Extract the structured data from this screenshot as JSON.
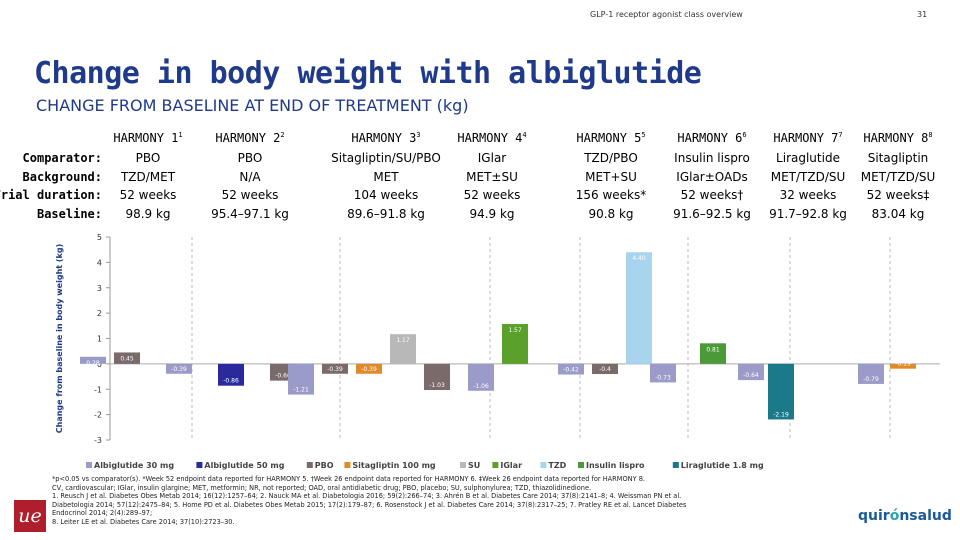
{
  "header": {
    "note": "GLP-1 receptor agonist class overview",
    "page": "31"
  },
  "title": "Change in body weight with albiglutide",
  "subtitle": "CHANGE FROM BASELINE AT END OF TREATMENT (kg)",
  "row_labels": {
    "comparator": "Comparator:",
    "background": "Background:",
    "duration": "Trial duration:",
    "baseline": "Baseline:"
  },
  "trials": [
    {
      "name": "HARMONY 1",
      "sup": "1",
      "comparator": "PBO",
      "background": "TZD/MET",
      "duration": "52 weeks",
      "baseline": "98.9 kg"
    },
    {
      "name": "HARMONY 2",
      "sup": "2",
      "comparator": "PBO",
      "background": "N/A",
      "duration": "52 weeks",
      "baseline": "95.4–97.1 kg"
    },
    {
      "name": "HARMONY 3",
      "sup": "3",
      "comparator": "Sitagliptin/SU/PBO",
      "background": "MET",
      "duration": "104 weeks",
      "baseline": "89.6–91.8 kg"
    },
    {
      "name": "HARMONY 4",
      "sup": "4",
      "comparator": "IGlar",
      "background": "MET±SU",
      "duration": "52 weeks",
      "baseline": "94.9 kg"
    },
    {
      "name": "HARMONY 5",
      "sup": "5",
      "comparator": "TZD/PBO",
      "background": "MET+SU",
      "duration": "156 weeks*",
      "baseline": "90.8 kg"
    },
    {
      "name": "HARMONY 6",
      "sup": "6",
      "comparator": "Insulin lispro",
      "background": "IGlar±OADs",
      "duration": "52 weeks†",
      "baseline": "91.6–92.5 kg"
    },
    {
      "name": "HARMONY 7",
      "sup": "7",
      "comparator": "Liraglutide",
      "background": "MET/TZD/SU",
      "duration": "32 weeks",
      "baseline": "91.7–92.8 kg"
    },
    {
      "name": "HARMONY 8",
      "sup": "8",
      "comparator": "Sitagliptin",
      "background": "MET/TZD/SU",
      "duration": "52 weeks‡",
      "baseline": "83.04 kg"
    }
  ],
  "chart_data": {
    "type": "bar",
    "ylabel": "Change from baseline in body weight (kg)",
    "ylim": [
      -3,
      5
    ],
    "yticks": [
      -3,
      -2,
      -1,
      0,
      1,
      2,
      3,
      4,
      5
    ],
    "groups": [
      "HARMONY 1",
      "HARMONY 2",
      "HARMONY 3",
      "HARMONY 4",
      "HARMONY 5",
      "HARMONY 6",
      "HARMONY 7",
      "HARMONY 8"
    ],
    "bars": [
      {
        "group": 0,
        "series": "Albiglutide 30 mg",
        "value": 0.28,
        "label": "0.28"
      },
      {
        "group": 0,
        "series": "PBO",
        "value": 0.45,
        "label": "0.45"
      },
      {
        "group": 1,
        "series": "Albiglutide 30 mg",
        "value": -0.39,
        "label": "-0.39"
      },
      {
        "group": 1,
        "series": "Albiglutide 50 mg",
        "value": -0.86,
        "label": "-0.86"
      },
      {
        "group": 1,
        "series": "PBO",
        "value": -0.66,
        "label": "-0.66"
      },
      {
        "group": 2,
        "series": "Albiglutide 30 mg",
        "value": -1.21,
        "label": "-1.21"
      },
      {
        "group": 2,
        "series": "PBO",
        "value": -0.39,
        "label": "-0.39"
      },
      {
        "group": 2,
        "series": "Sitagliptin 100 mg",
        "value": -0.39,
        "label": "-0.39"
      },
      {
        "group": 2,
        "series": "SU",
        "value": 1.17,
        "label": "1.17"
      },
      {
        "group": 2,
        "series": "Albiglutide 30 mg b",
        "value": -1.03,
        "label": "-1.03"
      },
      {
        "group": 3,
        "series": "Albiglutide 30 mg",
        "value": -1.06,
        "label": "-1.06"
      },
      {
        "group": 3,
        "series": "IGlar",
        "value": 1.57,
        "label": "1.57"
      },
      {
        "group": 4,
        "series": "Albiglutide 30 mg",
        "value": -0.42,
        "label": "-0.42"
      },
      {
        "group": 4,
        "series": "PBO",
        "value": -0.4,
        "label": "-0.4"
      },
      {
        "group": 4,
        "series": "TZD",
        "value": 4.4,
        "label": "4.40"
      },
      {
        "group": 5,
        "series": "Albiglutide 30 mg",
        "value": -0.73,
        "label": "-0.73"
      },
      {
        "group": 5,
        "series": "Insulin lispro",
        "value": 0.81,
        "label": "0.81"
      },
      {
        "group": 6,
        "series": "Albiglutide 30 mg",
        "value": -0.64,
        "label": "-0.64"
      },
      {
        "group": 6,
        "series": "Liraglutide 1.8 mg",
        "value": -2.19,
        "label": "-2.19"
      },
      {
        "group": 7,
        "series": "Albiglutide 30 mg",
        "value": -0.79,
        "label": "-0.79"
      },
      {
        "group": 7,
        "series": "Sitagliptin 100 mg",
        "value": -0.19,
        "label": "-0.19"
      }
    ],
    "legend": [
      {
        "name": "Albiglutide 30 mg",
        "color": "#9b9bc9"
      },
      {
        "name": "Albiglutide 50 mg",
        "color": "#2a2a9c"
      },
      {
        "name": "PBO",
        "color": "#7a6a6a"
      },
      {
        "name": "Sitagliptin 100 mg",
        "color": "#e08a2a"
      },
      {
        "name": "SU",
        "color": "#b8b8b8"
      },
      {
        "name": "IGlar",
        "color": "#5aa02a"
      },
      {
        "name": "TZD",
        "color": "#a8d4ee"
      },
      {
        "name": "Insulin lispro",
        "color": "#4a9a3a"
      },
      {
        "name": "Liraglutide 1.8 mg",
        "color": "#1a7a8a"
      }
    ],
    "legend_position": "bottom"
  },
  "footnotes": {
    "line1": "*p<0.05 vs comparator(s). *Week 52 endpoint data reported for HARMONY 5. †Week 26 endpoint data reported for HARMONY 6. ‡Week 26 endpoint data reported for HARMONY 8.",
    "line2": "CV, cardiovascular; IGlar, insulin glargine; MET, metformin; NR, not reported; OAD, oral antidiabetic drug; PBO, placebo; SU, sulphonylurea; TZD, thiazolidinedione.",
    "line3": "1. Reusch J et al. Diabetes Obes Metab 2014; 16(12):1257–64; 2. Nauck MA et al. Diabetologia 2016; 59(2):266–74; 3. Ahrén B et al. Diabetes Care 2014; 37(8):2141–8; 4. Weissman PN et al.",
    "line4": "Diabetologia 2014; 57(12):2475–84; 5. Home PD et al. Diabetes Obes Metab 2015; 17(2):179–87; 6. Rosenstock J et al. Diabetes Care 2014; 37(8):2317–25; 7. Pratley RE et al. Lancet Diabetes",
    "line5": "Endocrinol 2014; 2(4):289–97;",
    "line6": "8. Leiter LE et al. Diabetes Care 2014; 37(10):2723–30."
  },
  "logos": {
    "left": "ue",
    "right_pre": "quir",
    "right_dot": "ó",
    "right_post": "nsalud"
  }
}
